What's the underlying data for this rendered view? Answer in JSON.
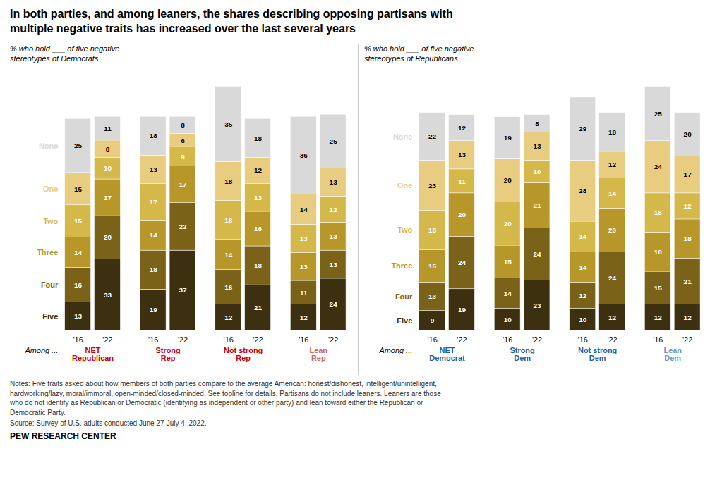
{
  "title": "In both parties, and among leaners, the shares describing opposing partisans with\nmultiple negative traits has increased over the last several years",
  "notes": [
    "Notes: Five traits asked about how members of both parties compare to the average American: honest/dishonest, intelligent/unintelligent,",
    "hardworking/lazy, moral/immoral, open-minded/closed-minded. See topline for details. Partisans do not include leaners. Leaners are those",
    "who do not identify as Republican or Democratic (identifying as independent or other party) and lean toward either the Republican or",
    "Democratic Party."
  ],
  "source": "Source: Survey of U.S. adults conducted June 27-July 4, 2022.",
  "footer": "PEW RESEARCH CENTER",
  "chart_data": [
    {
      "type": "bar",
      "stacked": true,
      "data_labels": true,
      "tick_labels": "x",
      "subtitle": "% who hold ___ of five negative\nstereotypes of Democrats",
      "annotation": "Among ...",
      "ylim": [
        0,
        119
      ],
      "groups": [
        {
          "name": "NET\nRepublican",
          "color": "#cc0000",
          "categories": [
            "'16",
            "'22"
          ]
        },
        {
          "name": "Strong\nRep",
          "color": "#cc0000",
          "categories": [
            "'16",
            "'22"
          ]
        },
        {
          "name": "Not strong\nRep",
          "color": "#cc0000",
          "categories": [
            "'16",
            "'22"
          ]
        },
        {
          "name": "Lean\nRep",
          "color": "#cc6666",
          "categories": [
            "'16",
            "'22"
          ]
        }
      ],
      "series": [
        {
          "name": "Five",
          "color": "#3d3010",
          "values": [
            13,
            33,
            19,
            37,
            12,
            21,
            12,
            24
          ]
        },
        {
          "name": "Four",
          "color": "#7a6318",
          "values": [
            16,
            20,
            18,
            22,
            16,
            18,
            11,
            13
          ]
        },
        {
          "name": "Three",
          "color": "#b8972a",
          "values": [
            14,
            17,
            14,
            17,
            14,
            16,
            13,
            13
          ]
        },
        {
          "name": "Two",
          "color": "#d4b84a",
          "values": [
            15,
            10,
            17,
            9,
            18,
            13,
            13,
            12
          ]
        },
        {
          "name": "One",
          "color": "#e8cc80",
          "values": [
            15,
            8,
            13,
            6,
            18,
            12,
            14,
            13
          ]
        },
        {
          "name": "None",
          "color": "#d9d9d9",
          "values": [
            25,
            11,
            18,
            8,
            35,
            18,
            36,
            25
          ]
        }
      ]
    },
    {
      "type": "bar",
      "stacked": true,
      "data_labels": true,
      "tick_labels": "x",
      "subtitle": "% who hold ___ of five negative\nstereotypes of Republicans",
      "annotation": "Among ...",
      "ylim": [
        0,
        118
      ],
      "groups": [
        {
          "name": "NET\nDemocrat",
          "color": "#1a5fa8",
          "categories": [
            "'16",
            "'22"
          ]
        },
        {
          "name": "Strong\nDem",
          "color": "#1a5fa8",
          "categories": [
            "'16",
            "'22"
          ]
        },
        {
          "name": "Not strong\nDem",
          "color": "#1a5fa8",
          "categories": [
            "'16",
            "'22"
          ]
        },
        {
          "name": "Lean\nDem",
          "color": "#6699cc",
          "categories": [
            "'16",
            "'22"
          ]
        }
      ],
      "series": [
        {
          "name": "Five",
          "color": "#3d3010",
          "values": [
            9,
            19,
            10,
            23,
            10,
            12,
            12,
            12
          ]
        },
        {
          "name": "Four",
          "color": "#7a6318",
          "values": [
            13,
            24,
            14,
            24,
            12,
            24,
            15,
            21
          ]
        },
        {
          "name": "Three",
          "color": "#b8972a",
          "values": [
            15,
            20,
            15,
            21,
            14,
            20,
            18,
            18
          ]
        },
        {
          "name": "Two",
          "color": "#d4b84a",
          "values": [
            18,
            11,
            20,
            10,
            14,
            14,
            18,
            12
          ]
        },
        {
          "name": "One",
          "color": "#e8cc80",
          "values": [
            23,
            13,
            20,
            13,
            28,
            12,
            24,
            17
          ]
        },
        {
          "name": "None",
          "color": "#d9d9d9",
          "values": [
            22,
            12,
            19,
            8,
            29,
            18,
            25,
            20
          ]
        }
      ]
    }
  ]
}
